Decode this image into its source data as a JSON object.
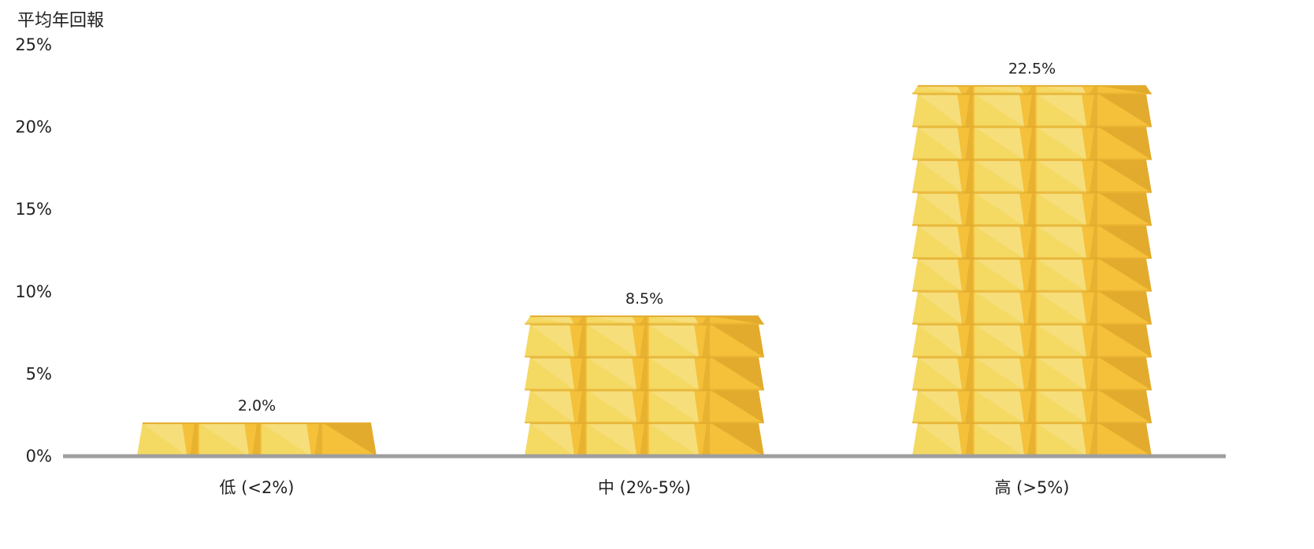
{
  "chart_data": {
    "type": "bar",
    "ylabel": "平均年回報",
    "ylim": [
      0,
      25
    ],
    "y_ticks": [
      0,
      5,
      10,
      15,
      20,
      25
    ],
    "y_tick_labels": [
      "0%",
      "5%",
      "10%",
      "15%",
      "20%",
      "25%"
    ],
    "categories": [
      "低 (<2%)",
      "中 (2%-5%)",
      "高 (>5%)"
    ],
    "values": [
      2.0,
      8.5,
      22.5
    ],
    "data_labels": [
      "2.0%",
      "8.5%",
      "22.5%"
    ],
    "bar_style": "stacked gold bars",
    "grid": false
  },
  "colors": {
    "gold_light": "#f4d963",
    "gold_mid": "#f5c13a",
    "gold_dark": "#e3ab2d",
    "gold_highlight": "#f7e28f",
    "baseline": "#9e9e9e",
    "text": "#222222"
  }
}
